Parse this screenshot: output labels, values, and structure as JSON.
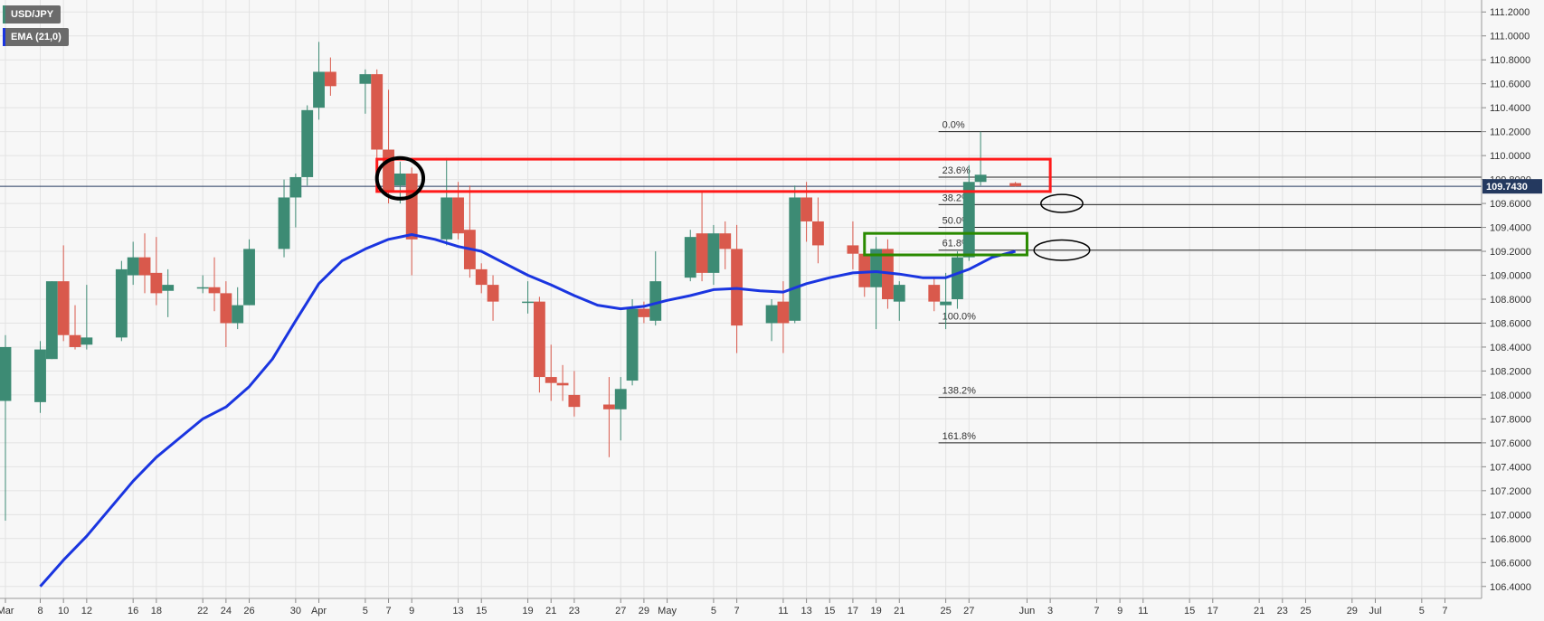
{
  "colors": {
    "background": "#f7f7f7",
    "grid": "#e3e3e3",
    "bull": "#3d8b74",
    "bear": "#d9594c",
    "ema": "#1a35e0",
    "axis_text": "#333333",
    "fib_line": "#222222",
    "price_line": "#24395f",
    "resistance_box": "#ff1a1a",
    "support_box": "#2a8a00",
    "legend_bg": "#6b6b6b"
  },
  "legend": {
    "symbol": "USD/JPY",
    "indicator": "EMA (21,0)"
  },
  "current_price": {
    "value": 109.743,
    "label": "109.7430"
  },
  "chart_data": {
    "type": "candlestick",
    "symbol": "USD/JPY",
    "ylim": [
      106.3,
      111.3
    ],
    "yticks": [
      106.4,
      106.6,
      106.8,
      107.0,
      107.2,
      107.4,
      107.6,
      107.8,
      108.0,
      108.2,
      108.4,
      108.6,
      108.8,
      109.0,
      109.2,
      109.4,
      109.6,
      109.8,
      110.0,
      110.2,
      110.4,
      110.6,
      110.8,
      111.0,
      111.2
    ],
    "ytick_labels": [
      "106.4000",
      "106.6000",
      "106.8000",
      "107.0000",
      "107.2000",
      "107.4000",
      "107.6000",
      "107.8000",
      "108.0000",
      "108.2000",
      "108.4000",
      "108.6000",
      "108.8000",
      "109.0000",
      "109.2000",
      "109.4000",
      "109.6000",
      "109.8000",
      "110.0000",
      "110.2000",
      "110.4000",
      "110.6000",
      "110.8000",
      "111.0000",
      "111.2000"
    ],
    "x_start": "2021-03-05",
    "xlim": [
      "2021-03-05",
      "2021-07-10"
    ],
    "xticks": [
      {
        "date": "2021-03-05",
        "label": "Mar"
      },
      {
        "date": "2021-03-08",
        "label": "8"
      },
      {
        "date": "2021-03-10",
        "label": "10"
      },
      {
        "date": "2021-03-12",
        "label": "12"
      },
      {
        "date": "2021-03-16",
        "label": "16"
      },
      {
        "date": "2021-03-18",
        "label": "18"
      },
      {
        "date": "2021-03-22",
        "label": "22"
      },
      {
        "date": "2021-03-24",
        "label": "24"
      },
      {
        "date": "2021-03-26",
        "label": "26"
      },
      {
        "date": "2021-03-30",
        "label": "30"
      },
      {
        "date": "2021-04-01",
        "label": "Apr"
      },
      {
        "date": "2021-04-05",
        "label": "5"
      },
      {
        "date": "2021-04-07",
        "label": "7"
      },
      {
        "date": "2021-04-09",
        "label": "9"
      },
      {
        "date": "2021-04-13",
        "label": "13"
      },
      {
        "date": "2021-04-15",
        "label": "15"
      },
      {
        "date": "2021-04-19",
        "label": "19"
      },
      {
        "date": "2021-04-21",
        "label": "21"
      },
      {
        "date": "2021-04-23",
        "label": "23"
      },
      {
        "date": "2021-04-27",
        "label": "27"
      },
      {
        "date": "2021-04-29",
        "label": "29"
      },
      {
        "date": "2021-05-01",
        "label": "May"
      },
      {
        "date": "2021-05-05",
        "label": "5"
      },
      {
        "date": "2021-05-07",
        "label": "7"
      },
      {
        "date": "2021-05-11",
        "label": "11"
      },
      {
        "date": "2021-05-13",
        "label": "13"
      },
      {
        "date": "2021-05-15",
        "label": "15"
      },
      {
        "date": "2021-05-17",
        "label": "17"
      },
      {
        "date": "2021-05-19",
        "label": "19"
      },
      {
        "date": "2021-05-21",
        "label": "21"
      },
      {
        "date": "2021-05-25",
        "label": "25"
      },
      {
        "date": "2021-05-27",
        "label": "27"
      },
      {
        "date": "2021-06-01",
        "label": "Jun"
      },
      {
        "date": "2021-06-03",
        "label": "3"
      },
      {
        "date": "2021-06-07",
        "label": "7"
      },
      {
        "date": "2021-06-09",
        "label": "9"
      },
      {
        "date": "2021-06-11",
        "label": "11"
      },
      {
        "date": "2021-06-15",
        "label": "15"
      },
      {
        "date": "2021-06-17",
        "label": "17"
      },
      {
        "date": "2021-06-21",
        "label": "21"
      },
      {
        "date": "2021-06-23",
        "label": "23"
      },
      {
        "date": "2021-06-25",
        "label": "25"
      },
      {
        "date": "2021-06-29",
        "label": "29"
      },
      {
        "date": "2021-07-01",
        "label": "Jul"
      },
      {
        "date": "2021-07-05",
        "label": "5"
      },
      {
        "date": "2021-07-07",
        "label": "7"
      }
    ],
    "candles": [
      {
        "date": "2021-03-05",
        "o": 107.95,
        "h": 108.5,
        "l": 106.95,
        "c": 108.4
      },
      {
        "date": "2021-03-08",
        "o": 107.94,
        "h": 108.45,
        "l": 107.85,
        "c": 108.38
      },
      {
        "date": "2021-03-09",
        "o": 108.3,
        "h": 108.95,
        "l": 108.3,
        "c": 108.95
      },
      {
        "date": "2021-03-10",
        "o": 108.95,
        "h": 109.25,
        "l": 108.45,
        "c": 108.5
      },
      {
        "date": "2021-03-11",
        "o": 108.5,
        "h": 108.75,
        "l": 108.38,
        "c": 108.4
      },
      {
        "date": "2021-03-12",
        "o": 108.42,
        "h": 108.92,
        "l": 108.38,
        "c": 108.48
      },
      {
        "date": "2021-03-15",
        "o": 108.48,
        "h": 109.12,
        "l": 108.45,
        "c": 109.05
      },
      {
        "date": "2021-03-16",
        "o": 109.0,
        "h": 109.28,
        "l": 108.92,
        "c": 109.15
      },
      {
        "date": "2021-03-17",
        "o": 109.15,
        "h": 109.35,
        "l": 108.85,
        "c": 109.0
      },
      {
        "date": "2021-03-18",
        "o": 109.02,
        "h": 109.32,
        "l": 108.75,
        "c": 108.85
      },
      {
        "date": "2021-03-19",
        "o": 108.87,
        "h": 109.05,
        "l": 108.65,
        "c": 108.92
      },
      {
        "date": "2021-03-22",
        "o": 108.9,
        "h": 109.0,
        "l": 108.85,
        "c": 108.9
      },
      {
        "date": "2021-03-23",
        "o": 108.9,
        "h": 109.15,
        "l": 108.7,
        "c": 108.85
      },
      {
        "date": "2021-03-24",
        "o": 108.85,
        "h": 108.95,
        "l": 108.4,
        "c": 108.6
      },
      {
        "date": "2021-03-25",
        "o": 108.6,
        "h": 108.9,
        "l": 108.55,
        "c": 108.75
      },
      {
        "date": "2021-03-26",
        "o": 108.75,
        "h": 109.3,
        "l": 108.75,
        "c": 109.22
      },
      {
        "date": "2021-03-29",
        "o": 109.22,
        "h": 109.8,
        "l": 109.15,
        "c": 109.65
      },
      {
        "date": "2021-03-30",
        "o": 109.65,
        "h": 109.85,
        "l": 109.4,
        "c": 109.82
      },
      {
        "date": "2021-03-31",
        "o": 109.82,
        "h": 110.42,
        "l": 109.75,
        "c": 110.38
      },
      {
        "date": "2021-04-01",
        "o": 110.4,
        "h": 110.95,
        "l": 110.3,
        "c": 110.7
      },
      {
        "date": "2021-04-02",
        "o": 110.7,
        "h": 110.82,
        "l": 110.5,
        "c": 110.58
      },
      {
        "date": "2021-04-05",
        "o": 110.6,
        "h": 110.72,
        "l": 110.35,
        "c": 110.68
      },
      {
        "date": "2021-04-06",
        "o": 110.68,
        "h": 110.72,
        "l": 109.92,
        "c": 110.05
      },
      {
        "date": "2021-04-07",
        "o": 110.05,
        "h": 110.55,
        "l": 109.6,
        "c": 109.7
      },
      {
        "date": "2021-04-08",
        "o": 109.75,
        "h": 109.95,
        "l": 109.6,
        "c": 109.85
      },
      {
        "date": "2021-04-09",
        "o": 109.85,
        "h": 109.9,
        "l": 109.0,
        "c": 109.3
      },
      {
        "date": "2021-04-12",
        "o": 109.3,
        "h": 109.98,
        "l": 109.25,
        "c": 109.65
      },
      {
        "date": "2021-04-13",
        "o": 109.65,
        "h": 109.78,
        "l": 109.3,
        "c": 109.35
      },
      {
        "date": "2021-04-14",
        "o": 109.38,
        "h": 109.75,
        "l": 108.98,
        "c": 109.05
      },
      {
        "date": "2021-04-15",
        "o": 109.05,
        "h": 109.1,
        "l": 108.85,
        "c": 108.92
      },
      {
        "date": "2021-04-16",
        "o": 108.92,
        "h": 109.0,
        "l": 108.62,
        "c": 108.78
      },
      {
        "date": "2021-04-19",
        "o": 108.78,
        "h": 108.95,
        "l": 108.68,
        "c": 108.78
      },
      {
        "date": "2021-04-20",
        "o": 108.78,
        "h": 108.82,
        "l": 108.02,
        "c": 108.15
      },
      {
        "date": "2021-04-21",
        "o": 108.15,
        "h": 108.42,
        "l": 107.95,
        "c": 108.1
      },
      {
        "date": "2021-04-22",
        "o": 108.1,
        "h": 108.25,
        "l": 107.95,
        "c": 108.08
      },
      {
        "date": "2021-04-23",
        "o": 108.0,
        "h": 108.2,
        "l": 107.82,
        "c": 107.9
      },
      {
        "date": "2021-04-26",
        "o": 107.92,
        "h": 108.15,
        "l": 107.48,
        "c": 107.88
      },
      {
        "date": "2021-04-27",
        "o": 107.88,
        "h": 108.15,
        "l": 107.62,
        "c": 108.05
      },
      {
        "date": "2021-04-28",
        "o": 108.12,
        "h": 108.8,
        "l": 108.08,
        "c": 108.72
      },
      {
        "date": "2021-04-29",
        "o": 108.72,
        "h": 108.78,
        "l": 108.6,
        "c": 108.65
      },
      {
        "date": "2021-04-30",
        "o": 108.62,
        "h": 109.2,
        "l": 108.58,
        "c": 108.95
      },
      {
        "date": "2021-05-03",
        "o": 108.98,
        "h": 109.38,
        "l": 108.95,
        "c": 109.32
      },
      {
        "date": "2021-05-04",
        "o": 109.35,
        "h": 109.7,
        "l": 108.95,
        "c": 109.02
      },
      {
        "date": "2021-05-05",
        "o": 109.02,
        "h": 109.42,
        "l": 108.92,
        "c": 109.35
      },
      {
        "date": "2021-05-06",
        "o": 109.35,
        "h": 109.45,
        "l": 109.05,
        "c": 109.22
      },
      {
        "date": "2021-05-07",
        "o": 109.22,
        "h": 109.42,
        "l": 108.35,
        "c": 108.58
      },
      {
        "date": "2021-05-10",
        "o": 108.6,
        "h": 108.8,
        "l": 108.45,
        "c": 108.75
      },
      {
        "date": "2021-05-11",
        "o": 108.78,
        "h": 108.95,
        "l": 108.35,
        "c": 108.6
      },
      {
        "date": "2021-05-12",
        "o": 108.62,
        "h": 109.75,
        "l": 108.6,
        "c": 109.65
      },
      {
        "date": "2021-05-13",
        "o": 109.65,
        "h": 109.78,
        "l": 109.28,
        "c": 109.45
      },
      {
        "date": "2021-05-14",
        "o": 109.45,
        "h": 109.65,
        "l": 109.1,
        "c": 109.25
      },
      {
        "date": "2021-05-17",
        "o": 109.25,
        "h": 109.45,
        "l": 109.05,
        "c": 109.18
      },
      {
        "date": "2021-05-18",
        "o": 109.18,
        "h": 109.22,
        "l": 108.82,
        "c": 108.9
      },
      {
        "date": "2021-05-19",
        "o": 108.9,
        "h": 109.32,
        "l": 108.55,
        "c": 109.22
      },
      {
        "date": "2021-05-20",
        "o": 109.22,
        "h": 109.3,
        "l": 108.72,
        "c": 108.8
      },
      {
        "date": "2021-05-21",
        "o": 108.78,
        "h": 108.95,
        "l": 108.62,
        "c": 108.92
      },
      {
        "date": "2021-05-24",
        "o": 108.92,
        "h": 108.98,
        "l": 108.7,
        "c": 108.78
      },
      {
        "date": "2021-05-25",
        "o": 108.75,
        "h": 109.02,
        "l": 108.55,
        "c": 108.78
      },
      {
        "date": "2021-05-26",
        "o": 108.8,
        "h": 109.2,
        "l": 108.72,
        "c": 109.15
      },
      {
        "date": "2021-05-27",
        "o": 109.15,
        "h": 109.92,
        "l": 109.12,
        "c": 109.78
      },
      {
        "date": "2021-05-28",
        "o": 109.78,
        "h": 110.2,
        "l": 109.75,
        "c": 109.84
      },
      {
        "date": "2021-05-31",
        "o": 109.77,
        "h": 109.78,
        "l": 109.74,
        "c": 109.743
      }
    ],
    "ema": {
      "name": "EMA (21,0)",
      "period": 21,
      "points": [
        {
          "date": "2021-03-08",
          "v": 106.4
        },
        {
          "date": "2021-03-10",
          "v": 106.62
        },
        {
          "date": "2021-03-12",
          "v": 106.82
        },
        {
          "date": "2021-03-14",
          "v": 107.05
        },
        {
          "date": "2021-03-16",
          "v": 107.28
        },
        {
          "date": "2021-03-18",
          "v": 107.48
        },
        {
          "date": "2021-03-20",
          "v": 107.64
        },
        {
          "date": "2021-03-22",
          "v": 107.8
        },
        {
          "date": "2021-03-24",
          "v": 107.9
        },
        {
          "date": "2021-03-26",
          "v": 108.07
        },
        {
          "date": "2021-03-28",
          "v": 108.3
        },
        {
          "date": "2021-03-30",
          "v": 108.62
        },
        {
          "date": "2021-04-01",
          "v": 108.93
        },
        {
          "date": "2021-04-03",
          "v": 109.12
        },
        {
          "date": "2021-04-05",
          "v": 109.22
        },
        {
          "date": "2021-04-07",
          "v": 109.3
        },
        {
          "date": "2021-04-09",
          "v": 109.34
        },
        {
          "date": "2021-04-11",
          "v": 109.3
        },
        {
          "date": "2021-04-13",
          "v": 109.24
        },
        {
          "date": "2021-04-15",
          "v": 109.2
        },
        {
          "date": "2021-04-17",
          "v": 109.1
        },
        {
          "date": "2021-04-19",
          "v": 109.0
        },
        {
          "date": "2021-04-21",
          "v": 108.92
        },
        {
          "date": "2021-04-23",
          "v": 108.83
        },
        {
          "date": "2021-04-25",
          "v": 108.75
        },
        {
          "date": "2021-04-27",
          "v": 108.72
        },
        {
          "date": "2021-04-29",
          "v": 108.74
        },
        {
          "date": "2021-05-01",
          "v": 108.79
        },
        {
          "date": "2021-05-03",
          "v": 108.83
        },
        {
          "date": "2021-05-05",
          "v": 108.88
        },
        {
          "date": "2021-05-07",
          "v": 108.89
        },
        {
          "date": "2021-05-09",
          "v": 108.87
        },
        {
          "date": "2021-05-11",
          "v": 108.86
        },
        {
          "date": "2021-05-13",
          "v": 108.93
        },
        {
          "date": "2021-05-15",
          "v": 108.98
        },
        {
          "date": "2021-05-17",
          "v": 109.02
        },
        {
          "date": "2021-05-19",
          "v": 109.03
        },
        {
          "date": "2021-05-21",
          "v": 109.01
        },
        {
          "date": "2021-05-23",
          "v": 108.98
        },
        {
          "date": "2021-05-25",
          "v": 108.98
        },
        {
          "date": "2021-05-27",
          "v": 109.05
        },
        {
          "date": "2021-05-29",
          "v": 109.15
        },
        {
          "date": "2021-05-31",
          "v": 109.2
        }
      ]
    },
    "fibonacci": {
      "levels": [
        {
          "label": "0.0%",
          "price": 110.2
        },
        {
          "label": "23.6%",
          "price": 109.82
        },
        {
          "label": "38.2%",
          "price": 109.59
        },
        {
          "label": "50.0%",
          "price": 109.4
        },
        {
          "label": "61.8%",
          "price": 109.21
        },
        {
          "label": "100.0%",
          "price": 108.6
        },
        {
          "label": "138.2%",
          "price": 107.98
        },
        {
          "label": "161.8%",
          "price": 107.6
        }
      ],
      "start_date": "2021-05-25",
      "end_date": "2021-07-05"
    },
    "annotations": [
      {
        "type": "rectangle",
        "color": "#ff1a1a",
        "from": "2021-04-06",
        "to": "2021-06-03",
        "price_low": 109.7,
        "price_high": 109.97
      },
      {
        "type": "rectangle",
        "color": "#2a8a00",
        "from": "2021-05-18",
        "to": "2021-06-01",
        "price_low": 109.17,
        "price_high": 109.35
      },
      {
        "type": "ellipse",
        "color": "#000000",
        "center_date": "2021-04-08",
        "center_price": 109.81,
        "date_radius": 2,
        "price_radius": 0.17
      },
      {
        "type": "ellipse",
        "color": "#000000",
        "center_date": "2021-06-04",
        "center_price": 109.6,
        "date_radius": 1.8,
        "price_radius": 0.075
      },
      {
        "type": "ellipse",
        "color": "#000000",
        "center_date": "2021-06-04",
        "center_price": 109.21,
        "date_radius": 2.4,
        "price_radius": 0.085
      }
    ]
  }
}
